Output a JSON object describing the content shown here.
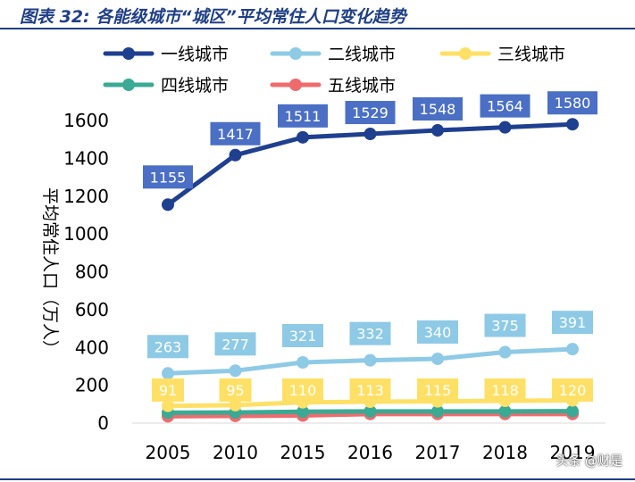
{
  "figure": {
    "title": "图表 32: 各能级城市“城区”平均常住人口变化趋势",
    "watermark": "头条 @财是"
  },
  "chart_data": {
    "type": "line",
    "x": [
      "2005",
      "2010",
      "2015",
      "2016",
      "2017",
      "2018",
      "2019"
    ],
    "ylabel": "平均常住人口（万人）",
    "ylim": [
      0,
      1600
    ],
    "yticks": [
      0,
      200,
      400,
      600,
      800,
      1000,
      1200,
      1400,
      1600
    ],
    "legend_position": "top",
    "grid": false,
    "series": [
      {
        "name": "一线城市",
        "color": "#1f3f8f",
        "label_bg": "#4a6fc4",
        "label_color": "#ffffff",
        "values": [
          1155,
          1417,
          1511,
          1529,
          1548,
          1564,
          1580
        ],
        "labels_shown": true
      },
      {
        "name": "二线城市",
        "color": "#8ecae6",
        "label_bg": "#8ecae6",
        "label_color": "#ffffff",
        "values": [
          263,
          277,
          321,
          332,
          340,
          375,
          391
        ],
        "labels_shown": true
      },
      {
        "name": "三线城市",
        "color": "#ffe066",
        "label_bg": "#ffe066",
        "label_color": "#ffffff",
        "values": [
          91,
          95,
          110,
          113,
          115,
          118,
          120
        ],
        "labels_shown": true
      },
      {
        "name": "四线城市",
        "color": "#3aaa94",
        "label_bg": "#3aaa94",
        "label_color": "#ffffff",
        "values": [
          55,
          56,
          60,
          62,
          62,
          62,
          63
        ],
        "labels_shown": false
      },
      {
        "name": "五线城市",
        "color": "#ee6b6e",
        "label_bg": "#ee6b6e",
        "label_color": "#ffffff",
        "values": [
          36,
          38,
          40,
          48,
          48,
          48,
          48
        ],
        "labels_shown": false
      }
    ]
  }
}
